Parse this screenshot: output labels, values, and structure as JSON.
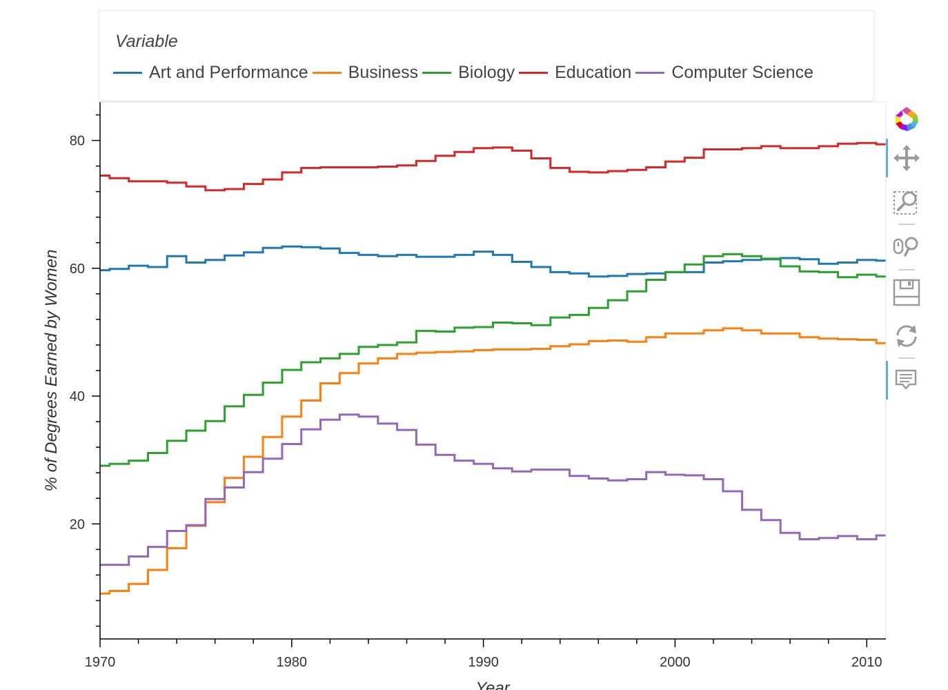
{
  "legend": {
    "title": "Variable",
    "items": [
      {
        "label": "Art and Performance",
        "color": "#1f77b4"
      },
      {
        "label": "Business",
        "color": "#ff7f0e"
      },
      {
        "label": "Biology",
        "color": "#2ca02c"
      },
      {
        "label": "Education",
        "color": "#d62728"
      },
      {
        "label": "Computer Science",
        "color": "#9467bd"
      }
    ]
  },
  "toolbar": {
    "tools": [
      {
        "name": "bokeh-logo-icon"
      },
      {
        "name": "pan-tool-icon",
        "active": true
      },
      {
        "name": "box-zoom-tool-icon"
      },
      {
        "name": "wheel-zoom-tool-icon"
      },
      {
        "name": "save-tool-icon"
      },
      {
        "name": "reset-tool-icon"
      },
      {
        "name": "hover-tool-icon",
        "active": true
      }
    ]
  },
  "chart_data": {
    "type": "line",
    "step": true,
    "title": "",
    "xlabel": "Year",
    "ylabel": "% of Degrees Earned by Women",
    "xlim": [
      1970,
      2011
    ],
    "ylim": [
      2,
      86
    ],
    "xticks": [
      1970,
      1980,
      1990,
      2000,
      2010
    ],
    "yticks": [
      20,
      40,
      60,
      80
    ],
    "grid": false,
    "legend": "top",
    "x": [
      1970,
      1971,
      1972,
      1973,
      1974,
      1975,
      1976,
      1977,
      1978,
      1979,
      1980,
      1981,
      1982,
      1983,
      1984,
      1985,
      1986,
      1987,
      1988,
      1989,
      1990,
      1991,
      1992,
      1993,
      1994,
      1995,
      1996,
      1997,
      1998,
      1999,
      2000,
      2001,
      2002,
      2003,
      2004,
      2005,
      2006,
      2007,
      2008,
      2009,
      2010,
      2011
    ],
    "series": [
      {
        "name": "Art and Performance",
        "color": "#1f77b4",
        "values": [
          59.7,
          59.9,
          60.4,
          60.2,
          61.9,
          60.9,
          61.3,
          62.0,
          62.5,
          63.2,
          63.4,
          63.3,
          63.1,
          62.4,
          62.1,
          61.9,
          62.1,
          61.8,
          61.8,
          62.1,
          62.6,
          62.1,
          61.0,
          60.2,
          59.4,
          59.2,
          58.7,
          58.8,
          59.1,
          59.2,
          59.4,
          59.4,
          60.9,
          61.1,
          61.3,
          61.4,
          61.6,
          61.4,
          60.7,
          60.9,
          61.3,
          61.2
        ]
      },
      {
        "name": "Business",
        "color": "#ff7f0e",
        "values": [
          9.1,
          9.5,
          10.6,
          12.8,
          16.2,
          19.7,
          23.4,
          27.2,
          30.5,
          33.6,
          36.8,
          39.3,
          42.0,
          43.6,
          45.1,
          45.9,
          46.6,
          46.8,
          46.9,
          47.0,
          47.2,
          47.3,
          47.3,
          47.4,
          47.8,
          48.1,
          48.6,
          48.7,
          48.5,
          49.2,
          49.8,
          49.8,
          50.3,
          50.6,
          50.3,
          49.8,
          49.8,
          49.2,
          49.0,
          48.9,
          48.8,
          48.3
        ]
      },
      {
        "name": "Biology",
        "color": "#2ca02c",
        "values": [
          29.1,
          29.4,
          29.9,
          31.1,
          33.0,
          34.6,
          36.1,
          38.4,
          40.2,
          42.1,
          44.1,
          45.3,
          45.9,
          46.6,
          47.7,
          48.0,
          48.4,
          50.2,
          50.1,
          50.7,
          50.8,
          51.5,
          51.4,
          51.1,
          52.3,
          52.7,
          53.8,
          55.0,
          56.4,
          58.2,
          59.4,
          60.6,
          61.9,
          62.2,
          61.9,
          61.5,
          60.3,
          59.5,
          59.4,
          58.6,
          59.0,
          58.7
        ]
      },
      {
        "name": "Education",
        "color": "#d62728",
        "values": [
          74.5,
          74.1,
          73.6,
          73.6,
          73.4,
          72.8,
          72.2,
          72.4,
          73.2,
          73.9,
          75.0,
          75.7,
          75.8,
          75.8,
          75.8,
          75.9,
          76.1,
          76.8,
          77.6,
          78.2,
          78.8,
          78.9,
          78.4,
          77.2,
          75.7,
          75.1,
          75.0,
          75.2,
          75.4,
          75.8,
          76.7,
          77.3,
          78.6,
          78.6,
          78.8,
          79.1,
          78.8,
          78.8,
          79.1,
          79.5,
          79.6,
          79.4
        ]
      },
      {
        "name": "Computer Science",
        "color": "#9467bd",
        "values": [
          13.6,
          13.6,
          14.9,
          16.4,
          18.9,
          19.8,
          23.9,
          25.7,
          28.1,
          30.2,
          32.5,
          34.8,
          36.3,
          37.1,
          36.8,
          35.7,
          34.7,
          32.4,
          30.8,
          29.9,
          29.4,
          28.7,
          28.2,
          28.5,
          28.5,
          27.5,
          27.1,
          26.8,
          27.0,
          28.1,
          27.7,
          27.6,
          27.0,
          25.1,
          22.2,
          20.6,
          18.6,
          17.6,
          17.8,
          18.1,
          17.6,
          18.2
        ]
      }
    ]
  }
}
